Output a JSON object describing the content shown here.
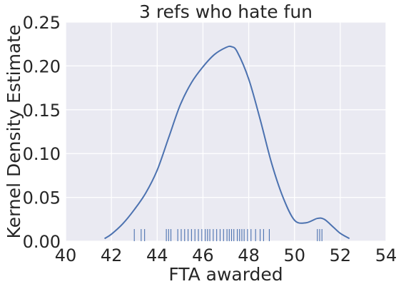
{
  "chart_data": {
    "type": "line",
    "title": "3 refs who hate fun",
    "xlabel": "FTA awarded",
    "ylabel": "Kernel Density Estimate",
    "xlim": [
      40,
      54
    ],
    "ylim": [
      0,
      0.25
    ],
    "xticks": [
      "40",
      "42",
      "44",
      "46",
      "48",
      "50",
      "52",
      "54"
    ],
    "yticks": [
      "0.00",
      "0.05",
      "0.10",
      "0.15",
      "0.20",
      "0.25"
    ],
    "grid": true,
    "line_color": "#4c72b0",
    "background_color": "#eaeaf2",
    "series": [
      {
        "kind": "kde",
        "x": [
          41.7,
          42.0,
          42.5,
          43.0,
          43.5,
          44.0,
          44.5,
          45.0,
          45.5,
          46.0,
          46.5,
          47.0,
          47.25,
          47.5,
          48.0,
          48.5,
          49.0,
          49.5,
          50.0,
          50.5,
          51.0,
          51.3,
          51.7,
          52.0,
          52.4
        ],
        "y": [
          0.003,
          0.008,
          0.02,
          0.036,
          0.055,
          0.081,
          0.118,
          0.155,
          0.181,
          0.199,
          0.213,
          0.221,
          0.222,
          0.216,
          0.185,
          0.139,
          0.089,
          0.05,
          0.024,
          0.021,
          0.026,
          0.025,
          0.016,
          0.009,
          0.003
        ]
      },
      {
        "kind": "rug",
        "x": [
          43.0,
          43.3,
          43.45,
          44.4,
          44.5,
          44.6,
          44.9,
          45.05,
          45.2,
          45.35,
          45.5,
          45.65,
          45.8,
          45.95,
          46.1,
          46.2,
          46.3,
          46.45,
          46.6,
          46.75,
          46.9,
          47.05,
          47.15,
          47.25,
          47.35,
          47.5,
          47.6,
          47.7,
          47.8,
          47.95,
          48.1,
          48.3,
          48.5,
          48.65,
          48.9,
          51.0,
          51.1,
          51.2
        ]
      }
    ]
  }
}
